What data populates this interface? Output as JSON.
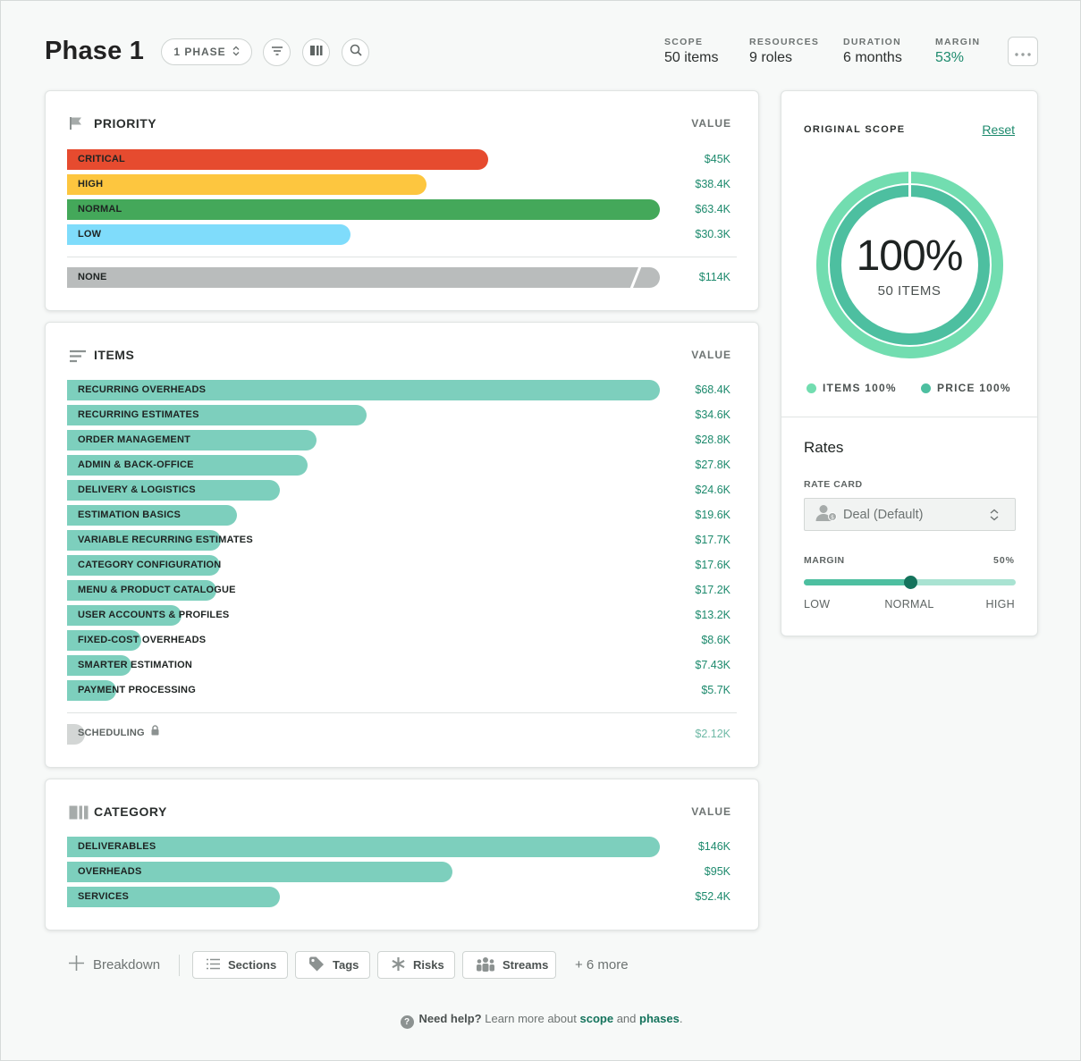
{
  "header": {
    "title": "Phase 1",
    "phase_pill": "1 PHASE",
    "stats": [
      {
        "label": "SCOPE",
        "value": "50 items"
      },
      {
        "label": "RESOURCES",
        "value": "9 roles"
      },
      {
        "label": "DURATION",
        "value": "6 months"
      },
      {
        "label": "MARGIN",
        "value": "53%"
      }
    ]
  },
  "priority": {
    "title": "PRIORITY",
    "value_header": "VALUE",
    "rows": [
      {
        "label": "CRITICAL",
        "value": "$45K",
        "color": "#e64b2f"
      },
      {
        "label": "HIGH",
        "value": "$38.4K",
        "color": "#fdc63f"
      },
      {
        "label": "NORMAL",
        "value": "$63.4K",
        "color": "#44a85a"
      },
      {
        "label": "LOW",
        "value": "$30.3K",
        "color": "#7fdcfb"
      }
    ],
    "none_row": {
      "label": "NONE",
      "value": "$114K",
      "color": "#b9bcbc"
    }
  },
  "items": {
    "title": "ITEMS",
    "value_header": "VALUE",
    "rows": [
      {
        "label": "RECURRING OVERHEADS",
        "value": "$68.4K"
      },
      {
        "label": "RECURRING ESTIMATES",
        "value": "$34.6K"
      },
      {
        "label": "ORDER MANAGEMENT",
        "value": "$28.8K"
      },
      {
        "label": "ADMIN & BACK-OFFICE",
        "value": "$27.8K"
      },
      {
        "label": "DELIVERY & LOGISTICS",
        "value": "$24.6K"
      },
      {
        "label": "ESTIMATION BASICS",
        "value": "$19.6K"
      },
      {
        "label": "VARIABLE RECURRING ESTIMATES",
        "value": "$17.7K"
      },
      {
        "label": "CATEGORY CONFIGURATION",
        "value": "$17.6K"
      },
      {
        "label": "MENU & PRODUCT CATALOGUE",
        "value": "$17.2K"
      },
      {
        "label": "USER ACCOUNTS & PROFILES",
        "value": "$13.2K"
      },
      {
        "label": "FIXED-COST OVERHEADS",
        "value": "$8.6K"
      },
      {
        "label": "SMARTER ESTIMATION",
        "value": "$7.43K"
      },
      {
        "label": "PAYMENT PROCESSING",
        "value": "$5.7K"
      }
    ],
    "locked_row": {
      "label": "SCHEDULING",
      "value": "$2.12K"
    },
    "bar_color": "#7dcfbd"
  },
  "category": {
    "title": "CATEGORY",
    "value_header": "VALUE",
    "rows": [
      {
        "label": "DELIVERABLES",
        "value": "$146K"
      },
      {
        "label": "OVERHEADS",
        "value": "$95K"
      },
      {
        "label": "SERVICES",
        "value": "$52.4K"
      }
    ]
  },
  "scope_card": {
    "heading": "ORIGINAL SCOPE",
    "reset": "Reset",
    "percent": "100%",
    "items_text": "50 ITEMS",
    "legend_items": "ITEMS 100%",
    "legend_price": "PRICE 100%",
    "outer_color": "#72ddb0",
    "inner_color": "#4dbfa0"
  },
  "rates": {
    "title": "Rates",
    "rate_card_label": "RATE CARD",
    "rate_card_value": "Deal (Default)",
    "margin_label": "MARGIN",
    "margin_value": "50%",
    "margin_fraction": 0.5,
    "ticks": [
      "LOW",
      "NORMAL",
      "HIGH"
    ]
  },
  "bottom": {
    "breakdown": "Breakdown",
    "buttons": [
      "Sections",
      "Tags",
      "Risks",
      "Streams"
    ],
    "more": "+ 6 more"
  },
  "help": {
    "need": "Need help?",
    "text": "Learn more about",
    "scope": "scope",
    "and": "and",
    "phases": "phases",
    "dot": "."
  }
}
